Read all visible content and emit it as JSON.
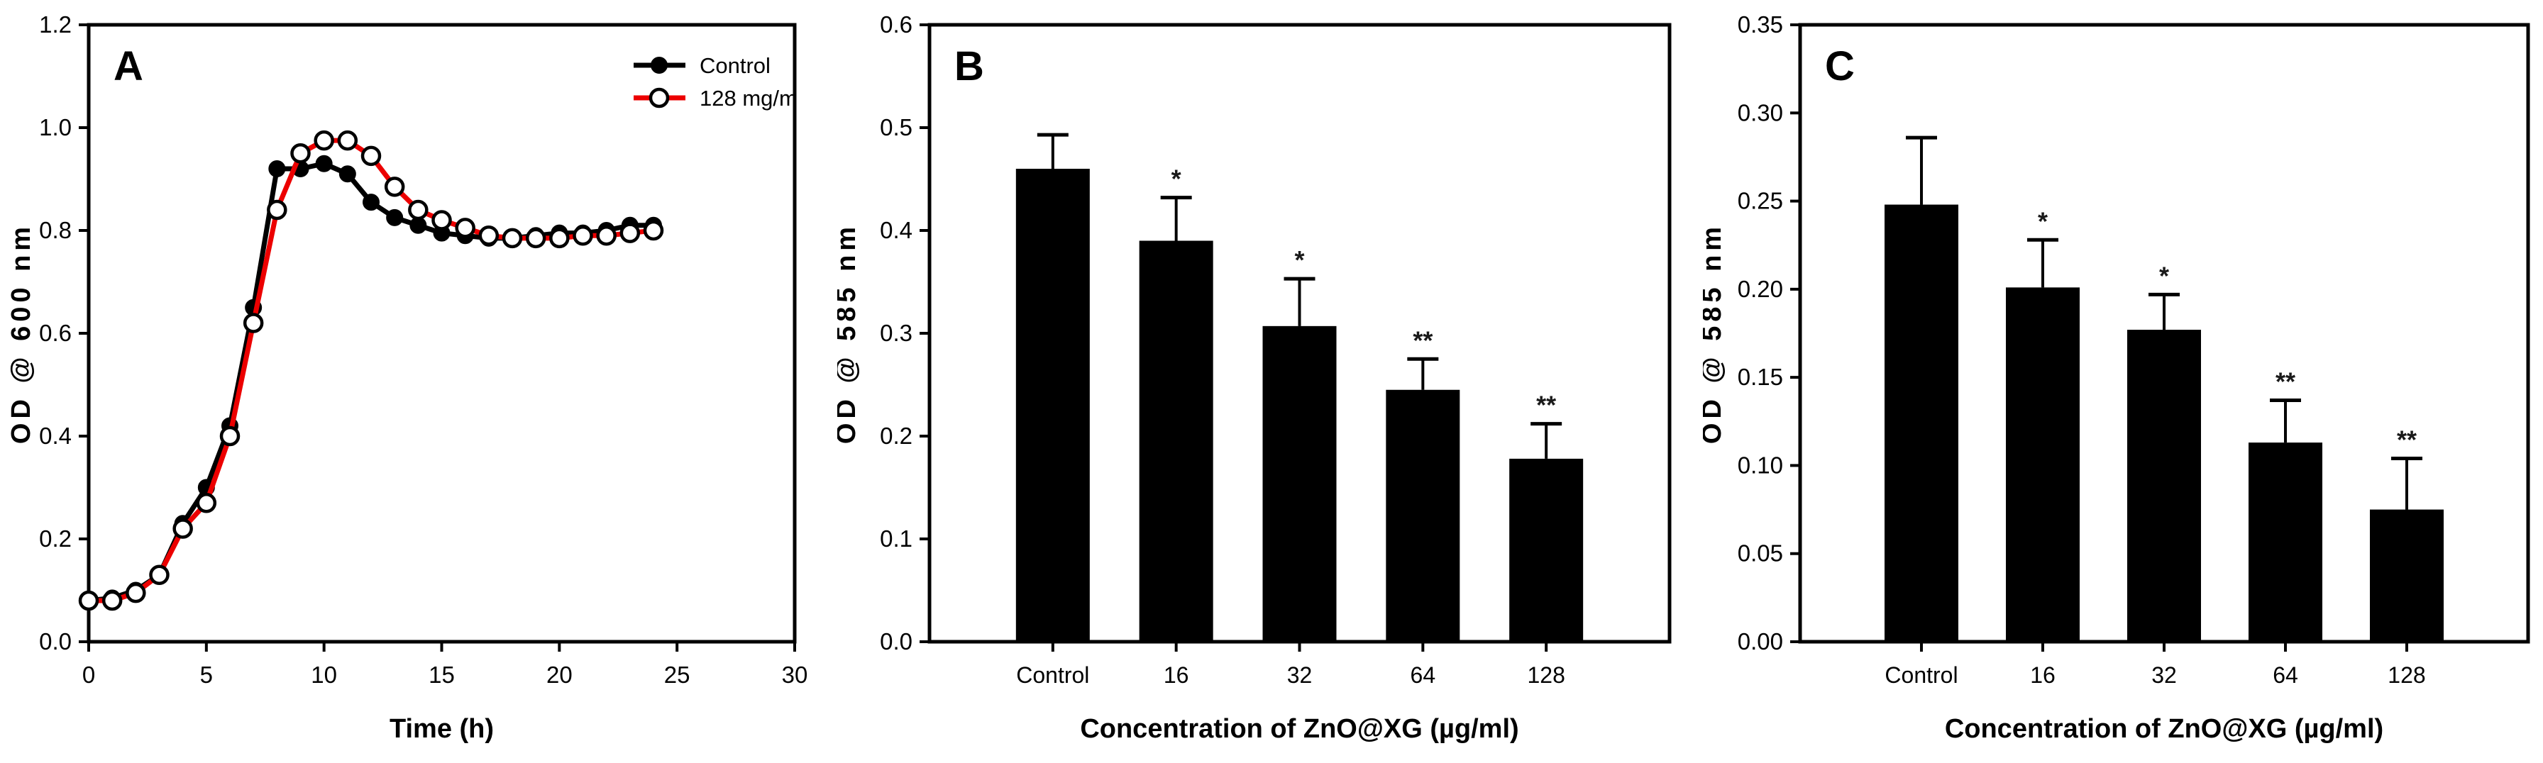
{
  "figure": {
    "background": "#ffffff",
    "axis_color": "#000000",
    "bar_color": "#000000",
    "control_color": "#000000",
    "treatment_color": "#ec0000",
    "sig_color": "#1a1a1a"
  },
  "chart_data": [
    {
      "type": "line",
      "panel_label": "A",
      "xlabel": "Time (h)",
      "ylabel": "OD @ 600 nm",
      "xlim": [
        0,
        30
      ],
      "ylim": [
        0,
        1.2
      ],
      "xtick_labels": [
        "0",
        "5",
        "10",
        "15",
        "20",
        "25",
        "30"
      ],
      "ytick_labels": [
        "0.0",
        "0.2",
        "0.4",
        "0.6",
        "0.8",
        "1.0",
        "1.2"
      ],
      "grid": false,
      "legend_position": "top-right",
      "x": [
        0,
        1,
        2,
        3,
        4,
        5,
        6,
        7,
        8,
        9,
        10,
        11,
        12,
        13,
        14,
        15,
        16,
        17,
        18,
        19,
        20,
        21,
        22,
        23,
        24
      ],
      "series": [
        {
          "name": "Control",
          "line_color": "#000000",
          "marker": "filled-circle",
          "error": 0.01,
          "values": [
            0.08,
            0.085,
            0.1,
            0.13,
            0.23,
            0.3,
            0.42,
            0.65,
            0.92,
            0.92,
            0.93,
            0.91,
            0.855,
            0.825,
            0.81,
            0.795,
            0.79,
            0.785,
            0.785,
            0.79,
            0.795,
            0.795,
            0.8,
            0.81,
            0.81
          ]
        },
        {
          "name": "128 mg/m",
          "line_color": "#ec0000",
          "marker": "open-circle",
          "error": 0.01,
          "values": [
            0.08,
            0.08,
            0.095,
            0.13,
            0.22,
            0.27,
            0.4,
            0.62,
            0.84,
            0.95,
            0.975,
            0.975,
            0.945,
            0.885,
            0.84,
            0.82,
            0.805,
            0.79,
            0.785,
            0.785,
            0.785,
            0.79,
            0.79,
            0.795,
            0.8
          ]
        }
      ]
    },
    {
      "type": "bar",
      "panel_label": "B",
      "xlabel": "Concentration of ZnO@XG (µg/ml)",
      "ylabel": "OD @ 585 nm",
      "ylim": [
        0,
        0.6
      ],
      "ytick_labels": [
        "0.0",
        "0.1",
        "0.2",
        "0.3",
        "0.4",
        "0.5",
        "0.6"
      ],
      "grid": false,
      "categories": [
        "Control",
        "16",
        "32",
        "64",
        "128"
      ],
      "values": [
        0.46,
        0.39,
        0.307,
        0.245,
        0.178
      ],
      "errors": [
        0.033,
        0.042,
        0.046,
        0.03,
        0.034
      ],
      "sig": [
        "",
        "*",
        "*",
        "**",
        "**"
      ]
    },
    {
      "type": "bar",
      "panel_label": "C",
      "xlabel": "Concentration of ZnO@XG (µg/ml)",
      "ylabel": "OD @ 585 nm",
      "ylim": [
        0,
        0.35
      ],
      "ytick_labels": [
        "0.00",
        "0.05",
        "0.10",
        "0.15",
        "0.20",
        "0.25",
        "0.30",
        "0.35"
      ],
      "grid": false,
      "categories": [
        "Control",
        "16",
        "32",
        "64",
        "128"
      ],
      "values": [
        0.248,
        0.201,
        0.177,
        0.113,
        0.075
      ],
      "errors": [
        0.038,
        0.027,
        0.02,
        0.024,
        0.029
      ],
      "sig": [
        "",
        "*",
        "*",
        "**",
        "**"
      ]
    }
  ]
}
